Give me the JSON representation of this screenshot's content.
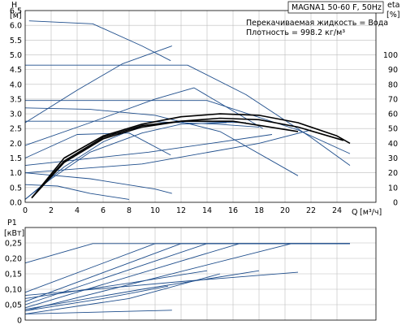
{
  "chart_data": [
    {
      "type": "line",
      "panel": "head",
      "title": "MAGNA1 50-60 F, 50Hz",
      "notes": [
        "Перекачиваемая жидкость = Вода",
        "Плотность = 998.2 кг/м³"
      ],
      "ylabel": "H",
      "yunit": "[м]",
      "y2label": "eta",
      "y2unit": "[%]",
      "xlabel": "Q",
      "xunit": "[м³/ч]",
      "xlim": [
        0,
        27
      ],
      "ylim": [
        0,
        6.5
      ],
      "y2lim": [
        0,
        130
      ],
      "xticks": [
        "0",
        "2",
        "4",
        "6",
        "8",
        "10",
        "12",
        "14",
        "16",
        "18",
        "20",
        "22",
        "24"
      ],
      "yticks": [
        "0.0",
        "0.5",
        "1.0",
        "1.5",
        "2.0",
        "2.5",
        "3.0",
        "3.5",
        "4.0",
        "4.5",
        "5.0",
        "5.5",
        "6.0",
        "6.5"
      ],
      "y2ticks": [
        "0",
        "10",
        "20",
        "30",
        "40",
        "50",
        "60",
        "70",
        "80",
        "90",
        "100"
      ],
      "grid": true,
      "colors": {
        "curve": "#1f4e8c",
        "efficiency": "#000000",
        "grid": "#bdbdbd"
      },
      "series": [
        {
          "role": "head",
          "x": [
            0.3,
            5.2,
            9.0,
            11.2
          ],
          "y": [
            6.15,
            6.05,
            5.3,
            4.8
          ]
        },
        {
          "role": "head",
          "x": [
            0,
            12.5,
            17.0,
            22.0,
            25.0
          ],
          "y": [
            4.65,
            4.65,
            3.65,
            2.2,
            1.25
          ]
        },
        {
          "role": "head",
          "x": [
            0,
            14.0,
            21.0,
            25.0
          ],
          "y": [
            3.45,
            3.45,
            2.45,
            1.65
          ]
        },
        {
          "role": "head",
          "x": [
            0,
            5.0,
            10.0,
            15.0,
            21.0
          ],
          "y": [
            3.2,
            3.15,
            2.95,
            2.4,
            0.9
          ]
        },
        {
          "role": "head",
          "x": [
            0,
            9.0,
            14.8,
            18.0
          ],
          "y": [
            2.75,
            2.75,
            2.65,
            2.55
          ]
        },
        {
          "role": "head",
          "x": [
            0,
            5.0,
            10.0,
            13.0,
            18.3
          ],
          "y": [
            1.93,
            2.7,
            3.5,
            3.88,
            2.5
          ]
        },
        {
          "role": "head",
          "x": [
            0,
            4.0,
            7.5,
            11.3
          ],
          "y": [
            2.7,
            3.8,
            4.7,
            5.3
          ]
        },
        {
          "role": "head",
          "x": [
            0,
            9.5,
            14.3,
            19.0
          ],
          "y": [
            1.25,
            1.7,
            2.0,
            2.3
          ]
        },
        {
          "role": "head",
          "x": [
            0,
            9.0,
            18.0,
            22.0
          ],
          "y": [
            1.0,
            1.3,
            2.0,
            2.45
          ]
        },
        {
          "role": "head",
          "x": [
            0,
            4.0,
            8.0,
            11.2
          ],
          "y": [
            1.5,
            2.3,
            2.35,
            1.6
          ]
        },
        {
          "role": "head",
          "x": [
            0,
            5.0,
            10.0,
            11.3
          ],
          "y": [
            1.0,
            0.8,
            0.45,
            0.3
          ]
        },
        {
          "role": "head",
          "x": [
            0,
            2.5,
            5.0,
            8.0
          ],
          "y": [
            0.6,
            0.55,
            0.3,
            0.1
          ]
        },
        {
          "role": "head",
          "x": [
            0,
            3.0,
            6.0,
            9.0,
            12.0,
            17.0
          ],
          "y": [
            0.1,
            1.2,
            2.05,
            2.6,
            2.75,
            2.7
          ]
        },
        {
          "role": "head",
          "x": [
            0,
            2.0,
            5.0,
            9.0,
            12.0,
            15.5
          ],
          "y": [
            0.1,
            0.8,
            1.7,
            2.35,
            2.65,
            2.7
          ]
        },
        {
          "role": "efficiency",
          "x": [
            0.5,
            3.0,
            6.0,
            9.0,
            12.0,
            15.0,
            18.0,
            21.0,
            24.0,
            25.0
          ],
          "y": [
            3,
            30,
            45,
            53,
            58,
            60,
            59,
            54,
            45,
            40
          ]
        },
        {
          "role": "efficiency",
          "x": [
            0.5,
            3.0,
            6.0,
            9.0,
            12.0,
            15.0,
            18.0,
            21.0,
            24.5
          ],
          "y": [
            3,
            27,
            43,
            51,
            55,
            57,
            56,
            51,
            42
          ]
        },
        {
          "role": "efficiency",
          "x": [
            0.5,
            3.0,
            6.0,
            9.0,
            12.0,
            16.0,
            21.0
          ],
          "y": [
            3,
            28,
            44,
            52,
            55,
            55,
            48
          ]
        }
      ]
    },
    {
      "type": "line",
      "panel": "power",
      "ylabel": "P1",
      "yunit": "[кВт]",
      "xlim": [
        0,
        27
      ],
      "ylim": [
        0,
        0.3
      ],
      "yticks": [
        "0",
        "0,05",
        "0,10",
        "0,15",
        "0,20",
        "0,25"
      ],
      "grid": true,
      "colors": {
        "curve": "#1f4e8c",
        "grid": "#bdbdbd"
      },
      "series": [
        {
          "x": [
            0,
            5.2,
            25.0
          ],
          "y": [
            0.185,
            0.248,
            0.248
          ]
        },
        {
          "x": [
            0,
            10.0,
            25.0
          ],
          "y": [
            0.09,
            0.248,
            0.248
          ]
        },
        {
          "x": [
            0,
            12.0,
            25.0
          ],
          "y": [
            0.06,
            0.248,
            0.248
          ]
        },
        {
          "x": [
            0,
            14.0,
            25.0
          ],
          "y": [
            0.05,
            0.248,
            0.248
          ]
        },
        {
          "x": [
            0,
            16.5,
            25.0
          ],
          "y": [
            0.04,
            0.248,
            0.248
          ]
        },
        {
          "x": [
            0,
            20.5,
            25.0
          ],
          "y": [
            0.03,
            0.248,
            0.248
          ]
        },
        {
          "x": [
            0,
            12.0,
            21.0
          ],
          "y": [
            0.08,
            0.125,
            0.155
          ]
        },
        {
          "x": [
            0,
            8.0,
            14.0
          ],
          "y": [
            0.07,
            0.12,
            0.16
          ]
        },
        {
          "x": [
            0,
            9.0,
            18.0
          ],
          "y": [
            0.035,
            0.1,
            0.16
          ]
        },
        {
          "x": [
            0,
            8.0,
            15.0
          ],
          "y": [
            0.02,
            0.07,
            0.15
          ]
        },
        {
          "x": [
            0,
            6.0,
            11.0
          ],
          "y": [
            0.03,
            0.07,
            0.11
          ]
        },
        {
          "x": [
            0,
            11.3
          ],
          "y": [
            0.02,
            0.032
          ]
        }
      ]
    }
  ]
}
